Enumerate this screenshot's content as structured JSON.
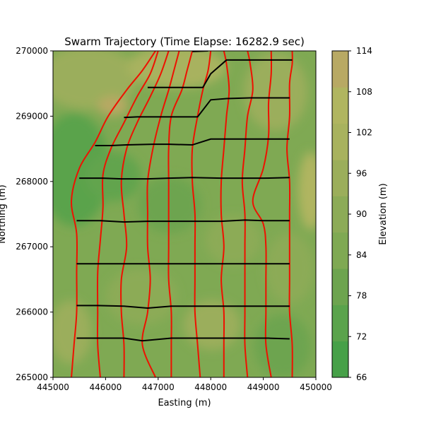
{
  "chart_data": {
    "type": "contour-trajectory",
    "title": "Swarm Trajectory (Time Elapse: 16282.9 sec)",
    "xlabel": "Easting (m)",
    "ylabel": "Northing (m)",
    "xlim": [
      445000,
      450000
    ],
    "ylim": [
      265000,
      270000
    ],
    "x_ticks": [
      "445000",
      "446000",
      "447000",
      "448000",
      "449000",
      "450000"
    ],
    "y_ticks": [
      "265000",
      "266000",
      "267000",
      "268000",
      "269000",
      "270000"
    ],
    "colorbar": {
      "label": "Elevation (m)",
      "range": [
        66,
        114
      ],
      "ticks": [
        "66",
        "72",
        "78",
        "84",
        "90",
        "96",
        "102",
        "108",
        "114"
      ],
      "colors": [
        "#46a048",
        "#5aa34c",
        "#6da44f",
        "#7fa953",
        "#8cab57",
        "#9bae5b",
        "#a8b25e",
        "#b0b560",
        "#b8a964"
      ]
    },
    "trajectories_color": "#ee1100",
    "trajectories": [
      [
        [
          445350,
          265000
        ],
        [
          445400,
          265500
        ],
        [
          445450,
          266000
        ],
        [
          445450,
          266600
        ],
        [
          445450,
          267200
        ],
        [
          445350,
          267700
        ],
        [
          445500,
          268200
        ],
        [
          445800,
          268600
        ],
        [
          446050,
          269000
        ],
        [
          446400,
          269400
        ],
        [
          446700,
          269700
        ],
        [
          446950,
          270000
        ]
      ],
      [
        [
          445900,
          265000
        ],
        [
          445850,
          265500
        ],
        [
          445850,
          266000
        ],
        [
          445850,
          266600
        ],
        [
          445900,
          267100
        ],
        [
          445950,
          267600
        ],
        [
          445950,
          268100
        ],
        [
          446100,
          268500
        ],
        [
          446350,
          268900
        ],
        [
          446600,
          269300
        ],
        [
          446850,
          269650
        ],
        [
          447000,
          270000
        ]
      ],
      [
        [
          446350,
          265000
        ],
        [
          446350,
          265500
        ],
        [
          446300,
          266000
        ],
        [
          446300,
          266500
        ],
        [
          446400,
          267000
        ],
        [
          446350,
          267500
        ],
        [
          446300,
          268000
        ],
        [
          446400,
          268500
        ],
        [
          446600,
          268900
        ],
        [
          446850,
          269300
        ],
        [
          447050,
          269650
        ],
        [
          447200,
          270000
        ]
      ],
      [
        [
          446950,
          265000
        ],
        [
          446700,
          265500
        ],
        [
          446800,
          266000
        ],
        [
          446850,
          266500
        ],
        [
          446800,
          267000
        ],
        [
          446800,
          267500
        ],
        [
          446800,
          268000
        ],
        [
          446900,
          268500
        ],
        [
          447050,
          269000
        ],
        [
          447200,
          269400
        ],
        [
          447300,
          269700
        ],
        [
          447400,
          270000
        ]
      ],
      [
        [
          447250,
          265000
        ],
        [
          447250,
          265500
        ],
        [
          447250,
          266000
        ],
        [
          447200,
          266500
        ],
        [
          447200,
          267000
        ],
        [
          447200,
          267500
        ],
        [
          447200,
          268000
        ],
        [
          447200,
          268500
        ],
        [
          447250,
          269000
        ],
        [
          447450,
          269400
        ],
        [
          447550,
          269700
        ],
        [
          447650,
          270000
        ]
      ],
      [
        [
          447800,
          265000
        ],
        [
          447750,
          265500
        ],
        [
          447700,
          266000
        ],
        [
          447700,
          266500
        ],
        [
          447700,
          267000
        ],
        [
          447700,
          267500
        ],
        [
          447650,
          268000
        ],
        [
          447650,
          268500
        ],
        [
          447750,
          269000
        ],
        [
          447850,
          269400
        ],
        [
          447950,
          269700
        ],
        [
          448000,
          270000
        ]
      ],
      [
        [
          448250,
          265000
        ],
        [
          448250,
          265500
        ],
        [
          448250,
          266000
        ],
        [
          448200,
          266500
        ],
        [
          448250,
          267000
        ],
        [
          448200,
          267500
        ],
        [
          448200,
          268000
        ],
        [
          448250,
          268500
        ],
        [
          448300,
          269000
        ],
        [
          448350,
          269400
        ],
        [
          448300,
          269800
        ],
        [
          448250,
          270000
        ]
      ],
      [
        [
          448700,
          265000
        ],
        [
          448650,
          265500
        ],
        [
          448650,
          266000
        ],
        [
          448650,
          266500
        ],
        [
          448650,
          267000
        ],
        [
          448650,
          267500
        ],
        [
          448600,
          268000
        ],
        [
          448650,
          268500
        ],
        [
          448700,
          269000
        ],
        [
          448800,
          269400
        ],
        [
          448750,
          269800
        ],
        [
          448700,
          270000
        ]
      ],
      [
        [
          449150,
          265000
        ],
        [
          449050,
          265500
        ],
        [
          449050,
          266000
        ],
        [
          449050,
          266500
        ],
        [
          449050,
          267000
        ],
        [
          449000,
          267350
        ],
        [
          448800,
          267700
        ],
        [
          449000,
          268200
        ],
        [
          449100,
          268700
        ],
        [
          449100,
          269200
        ],
        [
          449150,
          269650
        ],
        [
          449150,
          270000
        ]
      ],
      [
        [
          449550,
          265000
        ],
        [
          449550,
          265500
        ],
        [
          449500,
          266000
        ],
        [
          449500,
          266500
        ],
        [
          449500,
          267000
        ],
        [
          449500,
          267500
        ],
        [
          449500,
          268000
        ],
        [
          449450,
          268500
        ],
        [
          449500,
          269000
        ],
        [
          449500,
          269500
        ],
        [
          449550,
          269800
        ],
        [
          449550,
          270000
        ]
      ]
    ],
    "fronts_color": "#000000",
    "fronts": [
      [
        [
          445450,
          265600
        ],
        [
          445900,
          265600
        ],
        [
          446350,
          265600
        ],
        [
          446700,
          265560
        ],
        [
          447250,
          265600
        ],
        [
          447750,
          265600
        ],
        [
          448250,
          265600
        ],
        [
          448700,
          265600
        ],
        [
          449100,
          265600
        ],
        [
          449500,
          265590
        ]
      ],
      [
        [
          445450,
          266100
        ],
        [
          445850,
          266100
        ],
        [
          446350,
          266090
        ],
        [
          446800,
          266060
        ],
        [
          447250,
          266090
        ],
        [
          447700,
          266090
        ],
        [
          448250,
          266090
        ],
        [
          448650,
          266090
        ],
        [
          449050,
          266090
        ],
        [
          449500,
          266090
        ]
      ],
      [
        [
          445450,
          266740
        ],
        [
          445850,
          266740
        ],
        [
          446300,
          266740
        ],
        [
          446800,
          266740
        ],
        [
          447200,
          266740
        ],
        [
          447700,
          266740
        ],
        [
          448250,
          266740
        ],
        [
          448650,
          266740
        ],
        [
          449050,
          266740
        ],
        [
          449500,
          266740
        ]
      ],
      [
        [
          445450,
          267400
        ],
        [
          445900,
          267400
        ],
        [
          446350,
          267380
        ],
        [
          446800,
          267390
        ],
        [
          447200,
          267390
        ],
        [
          447700,
          267390
        ],
        [
          448200,
          267390
        ],
        [
          448650,
          267410
        ],
        [
          449000,
          267400
        ],
        [
          449500,
          267400
        ]
      ],
      [
        [
          445500,
          268050
        ],
        [
          445950,
          268050
        ],
        [
          446300,
          268040
        ],
        [
          446800,
          268040
        ],
        [
          447200,
          268050
        ],
        [
          447650,
          268060
        ],
        [
          448200,
          268050
        ],
        [
          448600,
          268050
        ],
        [
          449000,
          268050
        ],
        [
          449500,
          268060
        ]
      ],
      [
        [
          445800,
          268550
        ],
        [
          446100,
          268550
        ],
        [
          446400,
          268560
        ],
        [
          446900,
          268570
        ],
        [
          447200,
          268570
        ],
        [
          447650,
          268560
        ],
        [
          448000,
          268650
        ],
        [
          448250,
          268650
        ],
        [
          448650,
          268650
        ],
        [
          449100,
          268650
        ],
        [
          449500,
          268650
        ]
      ],
      [
        [
          446350,
          268980
        ],
        [
          446600,
          268990
        ],
        [
          447050,
          268990
        ],
        [
          447250,
          268990
        ],
        [
          447750,
          268990
        ],
        [
          448000,
          269250
        ],
        [
          448300,
          269270
        ],
        [
          448750,
          269280
        ],
        [
          449100,
          269280
        ],
        [
          449500,
          269280
        ]
      ],
      [
        [
          446800,
          269440
        ],
        [
          447200,
          269440
        ],
        [
          447450,
          269440
        ],
        [
          447850,
          269440
        ],
        [
          448000,
          269650
        ],
        [
          448300,
          269860
        ],
        [
          448750,
          269860
        ],
        [
          449150,
          269860
        ],
        [
          449550,
          269860
        ]
      ],
      [
        [
          447650,
          269990
        ],
        [
          447950,
          270000
        ]
      ]
    ]
  }
}
